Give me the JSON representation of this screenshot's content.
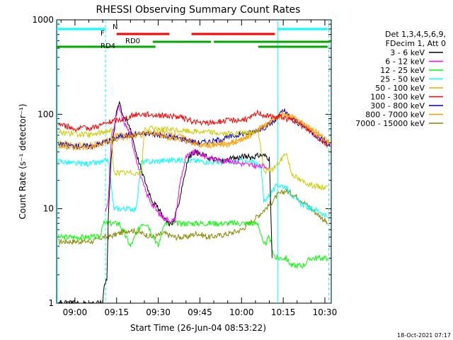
{
  "chart_data": {
    "type": "line",
    "title": "RHESSI Observing Summary Count Rates",
    "xlabel": "Start Time (26-Jun-04 08:53:22)",
    "ylabel": "Count Rate (s⁻¹ detector⁻¹)",
    "yscale": "log",
    "ylim": [
      1,
      1000
    ],
    "xlim_minutes": [
      53.4,
      152.3
    ],
    "x_ticks": [
      {
        "minute": 60,
        "label": "09:00"
      },
      {
        "minute": 75,
        "label": "09:15"
      },
      {
        "minute": 90,
        "label": "09:30"
      },
      {
        "minute": 105,
        "label": "09:45"
      },
      {
        "minute": 120,
        "label": "10:00"
      },
      {
        "minute": 135,
        "label": "10:15"
      },
      {
        "minute": 150,
        "label": "10:30"
      }
    ],
    "y_ticks": [
      {
        "value": 1,
        "label": "1"
      },
      {
        "value": 10,
        "label": "10"
      },
      {
        "value": 100,
        "label": "100"
      },
      {
        "value": 1000,
        "label": "1000"
      }
    ],
    "legend_header": [
      "Det 1,3,4,5,6,9,",
      "FDecim 1, Att 0"
    ],
    "legend_position": "right",
    "timestamp": "18-Oct-2021 07:17",
    "series": [
      {
        "name": "3 - 6 keV",
        "color": "#000000",
        "points": [
          [
            54,
            1.0
          ],
          [
            70,
            1.0
          ],
          [
            70.5,
            1.6
          ],
          [
            71.5,
            1.8
          ],
          [
            72,
            8
          ],
          [
            73,
            35
          ],
          [
            75,
            110
          ],
          [
            76,
            140
          ],
          [
            77,
            105
          ],
          [
            78,
            90
          ],
          [
            80,
            70
          ],
          [
            82,
            40
          ],
          [
            84,
            25
          ],
          [
            86,
            17
          ],
          [
            88,
            12
          ],
          [
            90,
            10
          ],
          [
            92,
            8
          ],
          [
            94,
            7
          ],
          [
            95,
            6.8
          ],
          [
            97,
            10
          ],
          [
            99,
            20
          ],
          [
            101,
            35
          ],
          [
            103,
            40
          ],
          [
            105,
            38
          ],
          [
            107,
            36
          ],
          [
            109,
            34
          ],
          [
            111,
            33
          ],
          [
            113,
            32
          ],
          [
            115,
            33
          ],
          [
            117,
            34
          ],
          [
            119,
            35
          ],
          [
            121,
            36
          ],
          [
            123,
            35
          ],
          [
            125,
            36
          ],
          [
            127,
            37
          ],
          [
            129,
            36
          ],
          [
            130,
            34
          ],
          [
            131,
            3.0
          ]
        ]
      },
      {
        "name": "6 - 12 keV",
        "color": "#ff00ff",
        "points": [
          [
            71,
            9
          ],
          [
            72,
            12
          ],
          [
            73,
            50
          ],
          [
            75,
            100
          ],
          [
            76,
            120
          ],
          [
            77,
            90
          ],
          [
            78,
            80
          ],
          [
            80,
            60
          ],
          [
            82,
            35
          ],
          [
            84,
            20
          ],
          [
            86,
            14
          ],
          [
            88,
            11
          ],
          [
            90,
            9
          ],
          [
            92,
            8
          ],
          [
            94,
            7.5
          ],
          [
            96,
            7.5
          ],
          [
            98,
            20
          ],
          [
            100,
            35
          ],
          [
            103,
            40
          ],
          [
            105,
            38
          ],
          [
            108,
            35
          ],
          [
            111,
            33
          ],
          [
            114,
            32
          ],
          [
            117,
            32
          ],
          [
            120,
            30
          ],
          [
            123,
            29
          ],
          [
            126,
            28
          ],
          [
            129,
            28
          ],
          [
            130,
            27
          ]
        ]
      },
      {
        "name": "12 - 25 keV",
        "color": "#00ff00",
        "points": [
          [
            54,
            5
          ],
          [
            60,
            5
          ],
          [
            66,
            5
          ],
          [
            69,
            5
          ],
          [
            70,
            7
          ],
          [
            74,
            7
          ],
          [
            76,
            7
          ],
          [
            80,
            4
          ],
          [
            84,
            7
          ],
          [
            86,
            7
          ],
          [
            90,
            4
          ],
          [
            92,
            7
          ],
          [
            98,
            7
          ],
          [
            104,
            7
          ],
          [
            110,
            7
          ],
          [
            116,
            7
          ],
          [
            121,
            7
          ],
          [
            123,
            7
          ],
          [
            126,
            7
          ],
          [
            128,
            4
          ],
          [
            130,
            5
          ],
          [
            132,
            3
          ],
          [
            134,
            3
          ],
          [
            136,
            3
          ],
          [
            138,
            2.5
          ],
          [
            142,
            2.5
          ],
          [
            145,
            3
          ],
          [
            148,
            3
          ],
          [
            151,
            3
          ]
        ]
      },
      {
        "name": "25 - 50 keV",
        "color": "#00ffff",
        "points": [
          [
            54,
            32
          ],
          [
            60,
            30
          ],
          [
            66,
            30
          ],
          [
            70,
            31
          ],
          [
            72,
            33
          ],
          [
            74,
            10
          ],
          [
            82,
            10
          ],
          [
            84,
            31
          ],
          [
            90,
            32
          ],
          [
            96,
            33
          ],
          [
            104,
            32
          ],
          [
            110,
            31
          ],
          [
            116,
            31
          ],
          [
            120,
            32
          ],
          [
            122,
            31
          ],
          [
            125,
            31
          ],
          [
            127,
            28
          ],
          [
            128,
            12
          ],
          [
            130,
            14
          ],
          [
            133,
            18
          ],
          [
            136,
            17
          ],
          [
            139,
            13
          ],
          [
            142,
            11
          ],
          [
            145,
            10
          ],
          [
            148,
            9.5
          ],
          [
            151,
            8
          ]
        ]
      },
      {
        "name": "50 - 100 keV",
        "color": "#ffa500",
        "points": [
          [
            54,
            50
          ],
          [
            60,
            47
          ],
          [
            66,
            47
          ],
          [
            70,
            50
          ],
          [
            74,
            58
          ],
          [
            76,
            62
          ],
          [
            80,
            60
          ],
          [
            84,
            62
          ],
          [
            88,
            65
          ],
          [
            92,
            63
          ],
          [
            96,
            60
          ],
          [
            100,
            55
          ],
          [
            104,
            48
          ],
          [
            108,
            47
          ],
          [
            112,
            47
          ],
          [
            116,
            48
          ],
          [
            120,
            54
          ],
          [
            124,
            62
          ],
          [
            128,
            75
          ],
          [
            132,
            88
          ],
          [
            135,
            100
          ],
          [
            138,
            95
          ],
          [
            141,
            85
          ],
          [
            144,
            75
          ],
          [
            147,
            65
          ],
          [
            150,
            55
          ],
          [
            152,
            47
          ]
        ]
      },
      {
        "name": "100 - 300 keV",
        "color": "#ff0000",
        "points": [
          [
            54,
            80
          ],
          [
            60,
            70
          ],
          [
            66,
            72
          ],
          [
            70,
            78
          ],
          [
            74,
            85
          ],
          [
            78,
            90
          ],
          [
            82,
            100
          ],
          [
            86,
            100
          ],
          [
            90,
            98
          ],
          [
            94,
            96
          ],
          [
            98,
            93
          ],
          [
            102,
            85
          ],
          [
            106,
            80
          ],
          [
            110,
            82
          ],
          [
            114,
            85
          ],
          [
            118,
            87
          ],
          [
            122,
            88
          ],
          [
            124,
            95
          ],
          [
            126,
            105
          ],
          [
            128,
            98
          ],
          [
            131,
            93
          ],
          [
            134,
            95
          ],
          [
            136,
            90
          ],
          [
            139,
            85
          ],
          [
            142,
            75
          ],
          [
            145,
            65
          ],
          [
            148,
            55
          ],
          [
            151,
            47
          ]
        ]
      },
      {
        "name": "300 - 800 keV",
        "color": "#0000cc",
        "points": [
          [
            54,
            48
          ],
          [
            60,
            46
          ],
          [
            66,
            46
          ],
          [
            70,
            50
          ],
          [
            76,
            58
          ],
          [
            82,
            62
          ],
          [
            88,
            62
          ],
          [
            94,
            58
          ],
          [
            100,
            54
          ],
          [
            104,
            50
          ],
          [
            110,
            52
          ],
          [
            116,
            58
          ],
          [
            120,
            62
          ],
          [
            124,
            65
          ],
          [
            128,
            72
          ],
          [
            132,
            85
          ],
          [
            135,
            110
          ],
          [
            138,
            90
          ],
          [
            142,
            75
          ],
          [
            146,
            62
          ],
          [
            150,
            52
          ],
          [
            152,
            46
          ]
        ]
      },
      {
        "name": "800 - 7000 keV",
        "color": "#ff9900",
        "points": [
          [
            54,
            46
          ],
          [
            60,
            44
          ],
          [
            66,
            45
          ],
          [
            70,
            48
          ],
          [
            76,
            56
          ],
          [
            82,
            60
          ],
          [
            88,
            62
          ],
          [
            94,
            57
          ],
          [
            100,
            52
          ],
          [
            104,
            48
          ],
          [
            110,
            48
          ],
          [
            116,
            50
          ],
          [
            120,
            55
          ],
          [
            124,
            62
          ],
          [
            128,
            75
          ],
          [
            132,
            90
          ],
          [
            135,
            102
          ],
          [
            138,
            92
          ],
          [
            142,
            78
          ],
          [
            146,
            64
          ],
          [
            150,
            54
          ],
          [
            152,
            48
          ]
        ]
      },
      {
        "name": "7000 - 15000 keV",
        "color": "#888800",
        "points": [
          [
            54,
            4.5
          ],
          [
            60,
            4.5
          ],
          [
            66,
            4.5
          ],
          [
            70,
            5
          ],
          [
            72,
            5
          ],
          [
            76,
            5.5
          ],
          [
            80,
            6
          ],
          [
            84,
            5.5
          ],
          [
            88,
            5
          ],
          [
            92,
            5.5
          ],
          [
            96,
            5
          ],
          [
            100,
            5
          ],
          [
            104,
            5.5
          ],
          [
            108,
            5
          ],
          [
            112,
            5.2
          ],
          [
            116,
            5.5
          ],
          [
            120,
            6
          ],
          [
            124,
            7.5
          ],
          [
            127,
            9
          ],
          [
            130,
            11
          ],
          [
            133,
            14
          ],
          [
            136,
            15.5
          ],
          [
            139,
            14
          ],
          [
            142,
            12
          ],
          [
            145,
            10
          ],
          [
            148,
            8.5
          ],
          [
            151,
            7
          ]
        ]
      }
    ],
    "extra_traces": [
      {
        "name": "upper-yellow",
        "color": "#cccc00",
        "points": [
          [
            54,
            65
          ],
          [
            60,
            62
          ],
          [
            66,
            60
          ],
          [
            70,
            65
          ],
          [
            73,
            68
          ],
          [
            74,
            24
          ],
          [
            84,
            24
          ],
          [
            85,
            70
          ],
          [
            90,
            70
          ],
          [
            96,
            68
          ],
          [
            102,
            66
          ],
          [
            108,
            65
          ],
          [
            114,
            62
          ],
          [
            120,
            63
          ],
          [
            124,
            64
          ],
          [
            126,
            68
          ],
          [
            128,
            25
          ],
          [
            131,
            26
          ],
          [
            134,
            32
          ],
          [
            136,
            40
          ],
          [
            138,
            24
          ],
          [
            141,
            20
          ],
          [
            145,
            18
          ],
          [
            148,
            17
          ],
          [
            151,
            17
          ]
        ]
      }
    ],
    "status_bars": [
      {
        "label": "N",
        "color": "#00ffff",
        "segments": [
          [
            53.4,
            71
          ],
          [
            133,
            151
          ]
        ]
      },
      {
        "label": "F",
        "color": "#ff0000",
        "segments": [
          [
            75,
            94
          ],
          [
            102,
            132
          ]
        ]
      },
      {
        "label": "RD0",
        "color": "#00aa00",
        "segments": [
          [
            88,
            109
          ],
          [
            110,
            152
          ]
        ]
      },
      {
        "label": "RD4",
        "color": "#00aa00",
        "segments": [
          [
            53.4,
            89
          ],
          [
            126,
            151
          ]
        ]
      }
    ],
    "vertical_markers": [
      {
        "minute": 53.6,
        "color": "#00ffff",
        "style": "solid"
      },
      {
        "minute": 71.0,
        "color": "#00ffff",
        "style": "dashed"
      },
      {
        "minute": 133.0,
        "color": "#00ffff",
        "style": "solid"
      },
      {
        "minute": 151.4,
        "color": "#00ffff",
        "style": "dashed"
      }
    ]
  }
}
